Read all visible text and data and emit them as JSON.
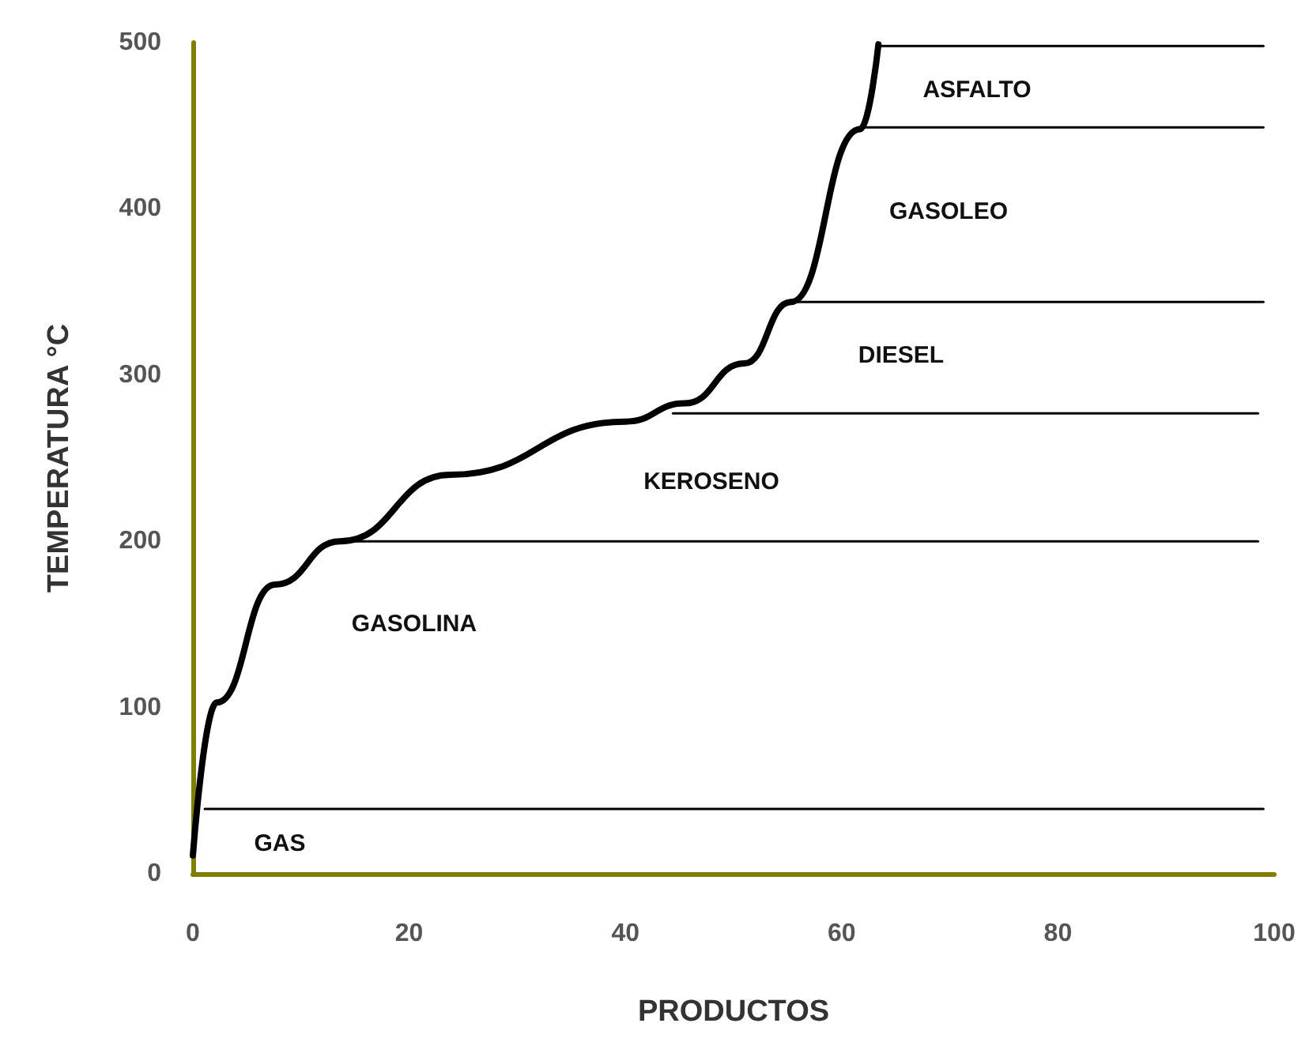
{
  "chart_data": {
    "type": "line",
    "xlabel": "PRODUCTOS",
    "ylabel": "TEMPERATURA °C",
    "xlim": [
      0,
      100
    ],
    "xticks": [
      0,
      20,
      40,
      60,
      80,
      100
    ],
    "ylim": [
      0,
      500
    ],
    "yticks": [
      0,
      100,
      200,
      300,
      400,
      500
    ],
    "grid": false,
    "marker": "none",
    "line_style": "solid",
    "series": [
      {
        "color": "#000000",
        "x": [
          0,
          2.2,
          7.6,
          13.6,
          23.8,
          40,
          45.5,
          51,
          55.3,
          61.7,
          63.4
        ],
        "values": [
          11,
          103,
          174,
          200,
          240,
          272,
          283,
          307,
          344,
          448,
          499
        ]
      },
      {
        "color": "#000000",
        "x": [
          1.1,
          99
        ],
        "values": [
          39,
          39
        ]
      },
      {
        "color": "#000000",
        "x": [
          13.6,
          98.5
        ],
        "values": [
          200,
          200
        ]
      },
      {
        "color": "#000000",
        "x": [
          44.4,
          98.5
        ],
        "values": [
          277,
          277
        ]
      },
      {
        "color": "#000000",
        "x": [
          55.6,
          99
        ],
        "values": [
          344,
          344
        ]
      },
      {
        "color": "#000000",
        "x": [
          61.5,
          99
        ],
        "values": [
          449,
          449
        ]
      },
      {
        "color": "#000000",
        "x": [
          63.6,
          99
        ],
        "values": [
          498,
          498
        ]
      }
    ],
    "annotations": [
      "GAS",
      "GASOLINA",
      "KEROSENO",
      "DIESEL",
      "GASOLEO",
      "ASFALTO"
    ]
  }
}
